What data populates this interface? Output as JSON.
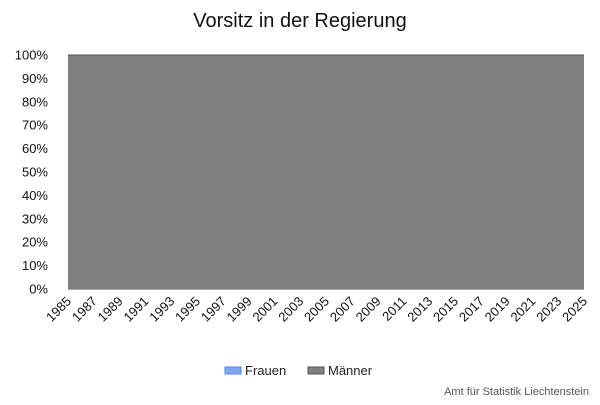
{
  "chart_data": {
    "type": "area",
    "stacking": "percent",
    "title": "Vorsitz in der Regierung",
    "xlabel": "",
    "ylabel": "",
    "x": [
      1985,
      1986,
      1987,
      1988,
      1989,
      1990,
      1991,
      1992,
      1993,
      1994,
      1995,
      1996,
      1997,
      1998,
      1999,
      2000,
      2001,
      2002,
      2003,
      2004,
      2005,
      2006,
      2007,
      2008,
      2009,
      2010,
      2011,
      2012,
      2013,
      2014,
      2015,
      2016,
      2017,
      2018,
      2019,
      2020,
      2021,
      2022,
      2023,
      2024,
      2025
    ],
    "x_tick_labels": [
      "1985",
      "1987",
      "1989",
      "1991",
      "1993",
      "1995",
      "1997",
      "1999",
      "2001",
      "2003",
      "2005",
      "2007",
      "2009",
      "2011",
      "2013",
      "2015",
      "2017",
      "2019",
      "2021",
      "2023",
      "2025"
    ],
    "y_tick_labels": [
      "0%",
      "10%",
      "20%",
      "30%",
      "40%",
      "50%",
      "60%",
      "70%",
      "80%",
      "90%",
      "100%"
    ],
    "ylim": [
      0,
      100
    ],
    "grid": true,
    "legend_position": "bottom",
    "series": [
      {
        "name": "Frauen",
        "color": "#7ea6f4",
        "values": [
          0,
          0,
          0,
          0,
          0,
          0,
          0,
          0,
          0,
          0,
          0,
          0,
          0,
          0,
          0,
          0,
          0,
          0,
          0,
          0,
          0,
          0,
          0,
          0,
          0,
          0,
          0,
          0,
          0,
          0,
          0,
          0,
          0,
          0,
          0,
          0,
          0,
          0,
          0,
          0,
          0
        ]
      },
      {
        "name": "Männer",
        "color": "#808080",
        "values": [
          100,
          100,
          100,
          100,
          100,
          100,
          100,
          100,
          100,
          100,
          100,
          100,
          100,
          100,
          100,
          100,
          100,
          100,
          100,
          100,
          100,
          100,
          100,
          100,
          100,
          100,
          100,
          100,
          100,
          100,
          100,
          100,
          100,
          100,
          100,
          100,
          100,
          100,
          100,
          100,
          100
        ]
      }
    ]
  },
  "credit": "Amt für Statistik Liechtenstein"
}
